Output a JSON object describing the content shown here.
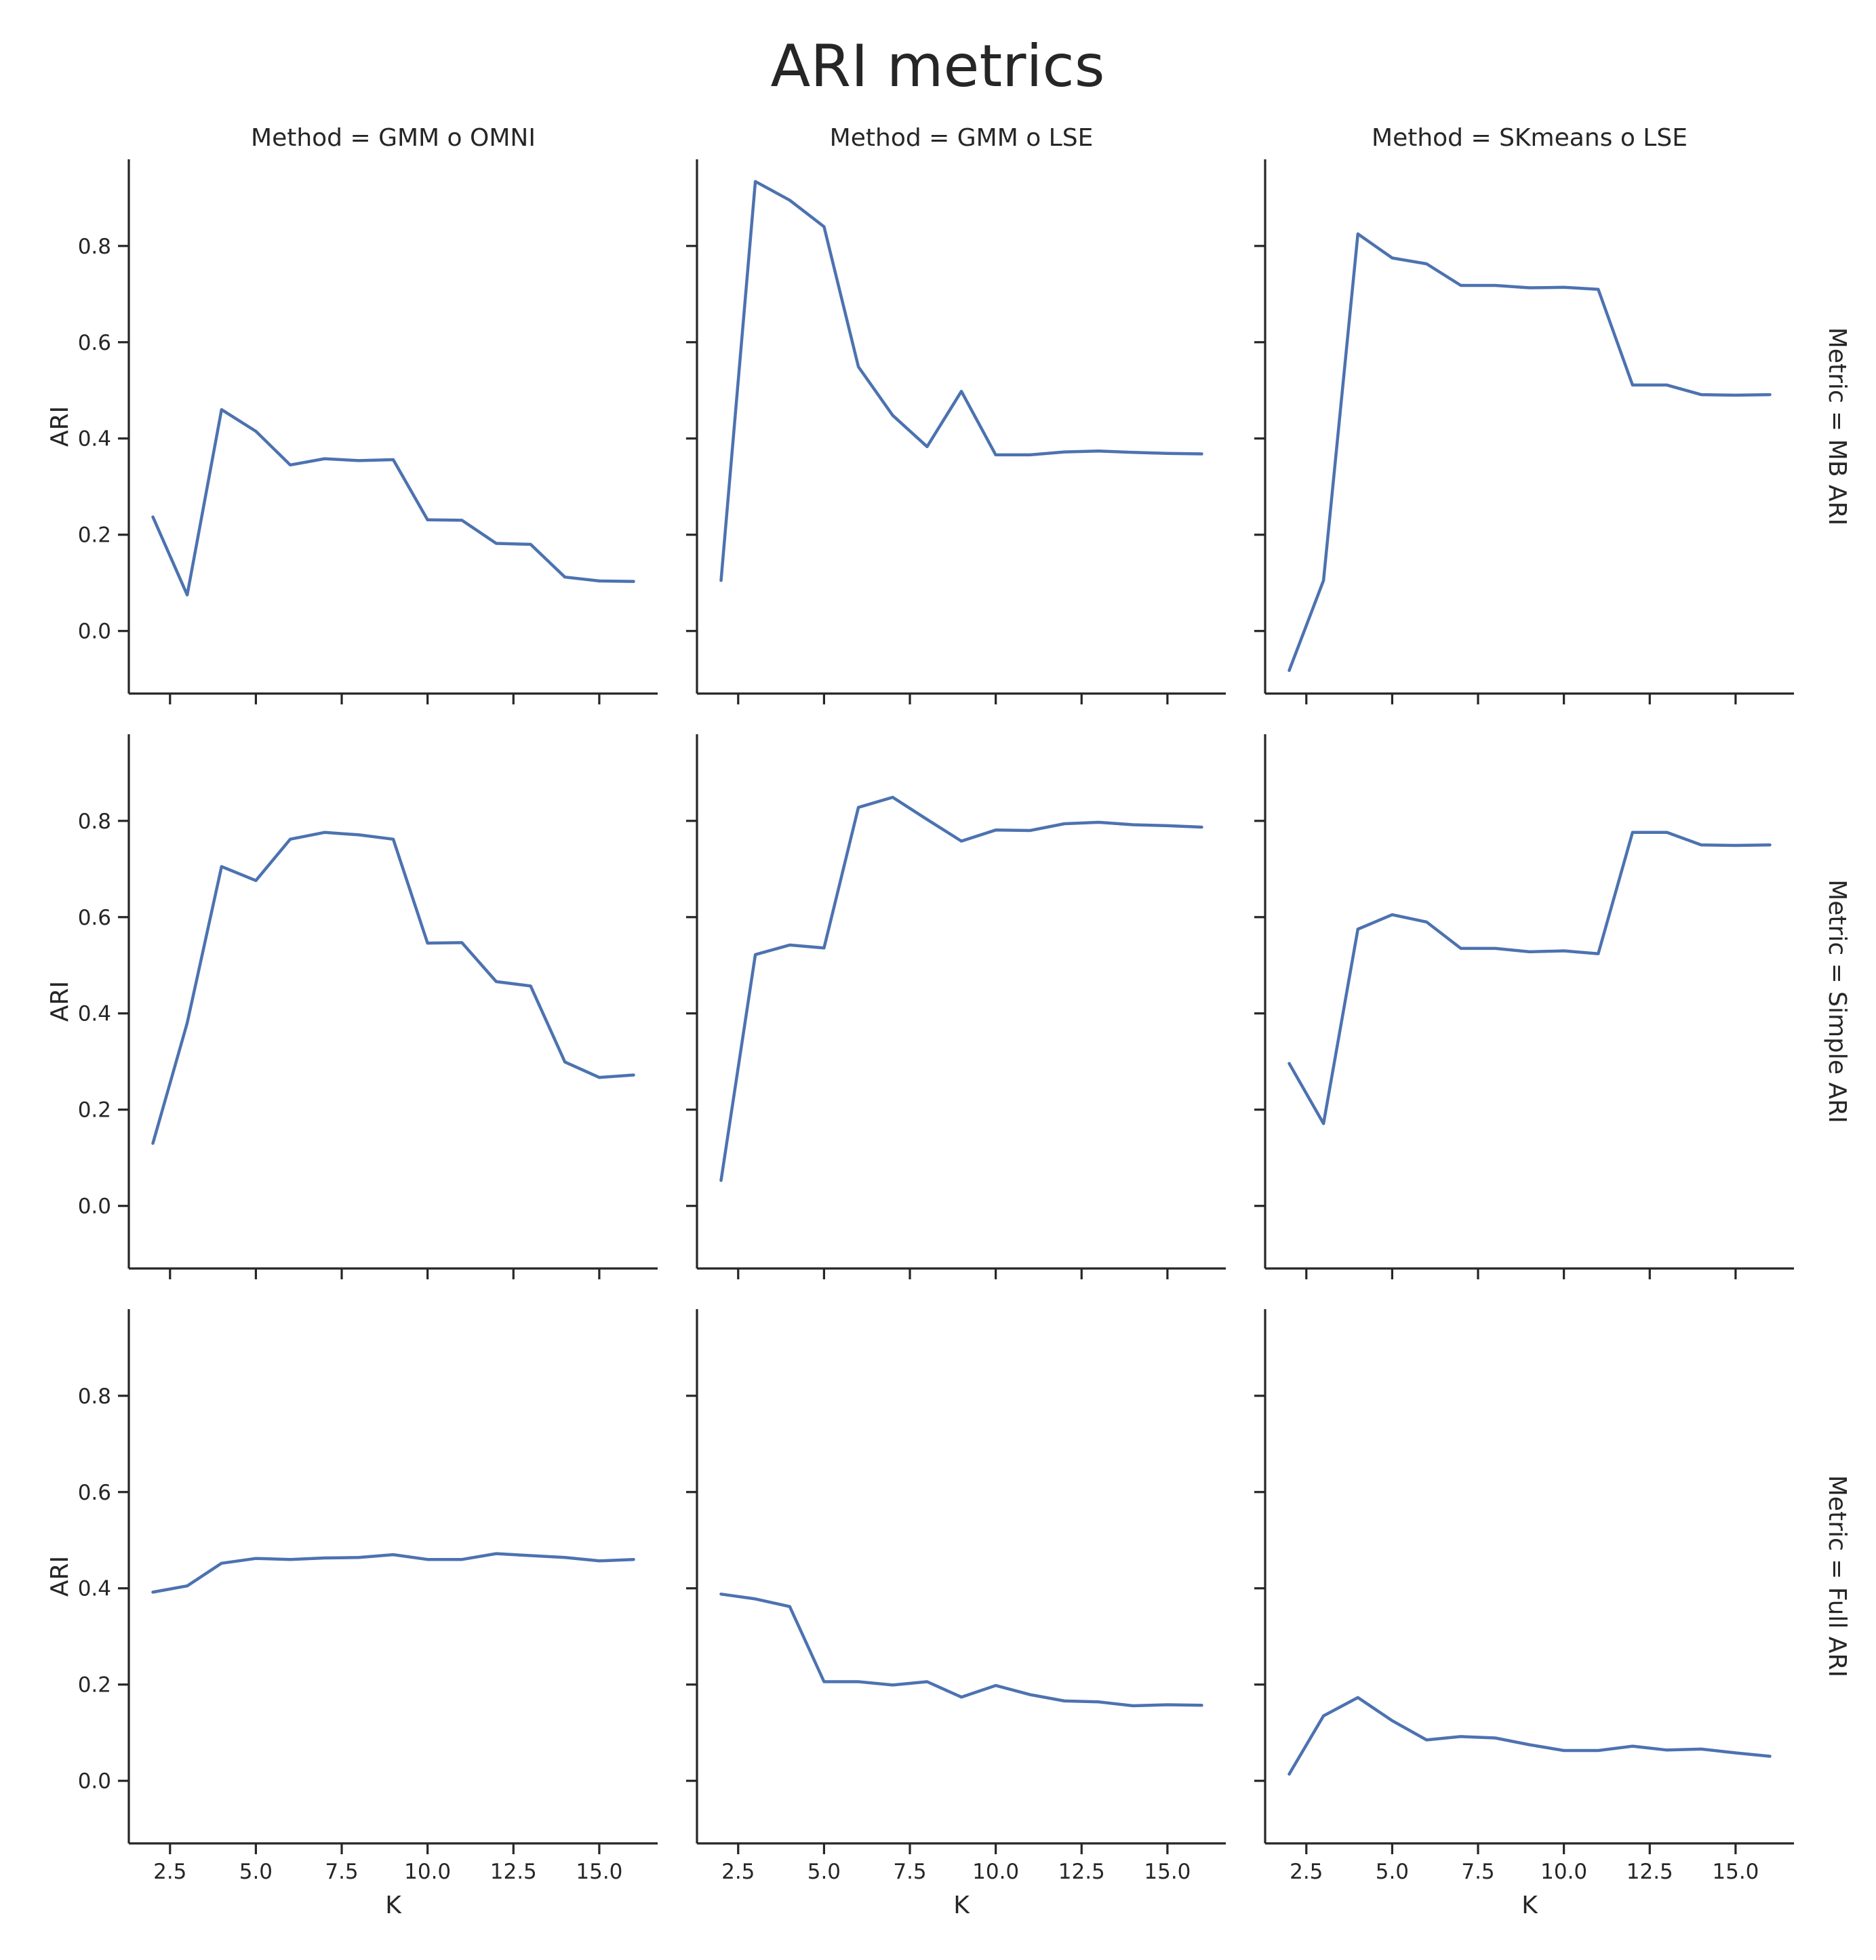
{
  "figure": {
    "title": "ARI metrics",
    "col_label_prefix": "Method = ",
    "row_label_prefix": "Metric = "
  },
  "colors": {
    "line": "#4c72b0",
    "axis": "#262626",
    "text": "#262626",
    "background": "#ffffff"
  },
  "chart_data": {
    "type": "line",
    "layout": "facet-grid",
    "columns": [
      "GMM o OMNI",
      "GMM o LSE",
      "SKmeans o LSE"
    ],
    "rows": [
      "MB ARI",
      "Simple ARI",
      "Full ARI"
    ],
    "xlabel": "K",
    "ylabel": "ARI",
    "xlim": [
      1.3,
      16.7
    ],
    "ylim": [
      -0.13,
      0.98
    ],
    "xticks": [
      2.5,
      5.0,
      7.5,
      10.0,
      12.5,
      15.0
    ],
    "xtick_labels": [
      "2.5",
      "5.0",
      "7.5",
      "10.0",
      "12.5",
      "15.0"
    ],
    "yticks": [
      0.0,
      0.2,
      0.4,
      0.6,
      0.8
    ],
    "ytick_labels": [
      "0.0",
      "0.2",
      "0.4",
      "0.6",
      "0.8"
    ],
    "grid": false,
    "x": [
      2,
      3,
      4,
      5,
      6,
      7,
      8,
      9,
      10,
      11,
      12,
      13,
      14,
      15,
      16
    ],
    "panels": [
      {
        "row": "MB ARI",
        "col": "GMM o OMNI",
        "values": [
          0.237,
          0.075,
          0.46,
          0.415,
          0.345,
          0.358,
          0.354,
          0.356,
          0.231,
          0.23,
          0.182,
          0.18,
          0.112,
          0.104,
          0.103
        ]
      },
      {
        "row": "MB ARI",
        "col": "GMM o LSE",
        "values": [
          0.105,
          0.934,
          0.895,
          0.84,
          0.549,
          0.448,
          0.383,
          0.498,
          0.366,
          0.366,
          0.372,
          0.374,
          0.371,
          0.369,
          0.368
        ]
      },
      {
        "row": "MB ARI",
        "col": "SKmeans o LSE",
        "values": [
          -0.082,
          0.105,
          0.825,
          0.775,
          0.763,
          0.718,
          0.718,
          0.713,
          0.714,
          0.71,
          0.511,
          0.511,
          0.491,
          0.49,
          0.491
        ]
      },
      {
        "row": "Simple ARI",
        "col": "GMM o OMNI",
        "values": [
          0.13,
          0.38,
          0.705,
          0.676,
          0.762,
          0.776,
          0.771,
          0.762,
          0.546,
          0.547,
          0.466,
          0.457,
          0.299,
          0.267,
          0.272
        ]
      },
      {
        "row": "Simple ARI",
        "col": "GMM o LSE",
        "values": [
          0.053,
          0.522,
          0.542,
          0.536,
          0.828,
          0.849,
          0.803,
          0.758,
          0.781,
          0.78,
          0.794,
          0.797,
          0.792,
          0.79,
          0.787
        ]
      },
      {
        "row": "Simple ARI",
        "col": "SKmeans o LSE",
        "values": [
          0.296,
          0.171,
          0.575,
          0.605,
          0.59,
          0.535,
          0.535,
          0.528,
          0.53,
          0.524,
          0.776,
          0.776,
          0.75,
          0.749,
          0.75
        ]
      },
      {
        "row": "Full ARI",
        "col": "GMM o OMNI",
        "values": [
          0.392,
          0.405,
          0.452,
          0.462,
          0.46,
          0.463,
          0.464,
          0.47,
          0.46,
          0.46,
          0.472,
          0.468,
          0.464,
          0.457,
          0.46
        ]
      },
      {
        "row": "Full ARI",
        "col": "GMM o LSE",
        "values": [
          0.388,
          0.378,
          0.362,
          0.206,
          0.206,
          0.199,
          0.206,
          0.174,
          0.198,
          0.179,
          0.166,
          0.164,
          0.156,
          0.158,
          0.157
        ]
      },
      {
        "row": "Full ARI",
        "col": "SKmeans o LSE",
        "values": [
          0.014,
          0.135,
          0.173,
          0.125,
          0.085,
          0.092,
          0.089,
          0.075,
          0.063,
          0.063,
          0.072,
          0.064,
          0.066,
          0.058,
          0.051
        ]
      }
    ]
  }
}
